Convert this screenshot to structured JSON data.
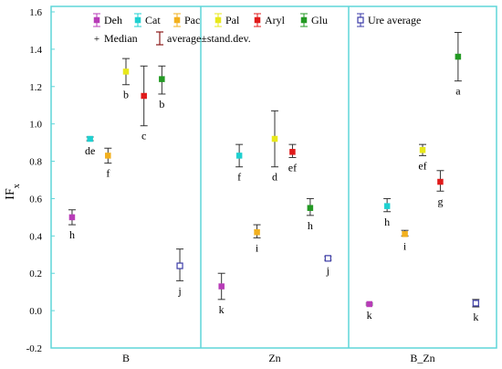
{
  "chart_data": {
    "type": "scatter",
    "title": "",
    "xlabel": "",
    "ylabel": "IF",
    "ylabel_subscript": "x",
    "ylim": [
      -0.2,
      1.6
    ],
    "yticks": [
      "-0.2",
      "0.0",
      "0.2",
      "0.4",
      "0.6",
      "0.8",
      "1.0",
      "1.2",
      "1.4",
      "1.6"
    ],
    "yticks_values": [
      -0.2,
      0,
      0.2,
      0.4,
      0.6,
      0.8,
      1.0,
      1.2,
      1.4,
      1.6
    ],
    "groups": [
      "B",
      "Zn",
      "B_Zn"
    ],
    "legend": {
      "placement": "top",
      "items": [
        {
          "name": "Deh",
          "color": "#b83cb8",
          "marker": "square-filled"
        },
        {
          "name": "Cat",
          "color": "#1fd0d0",
          "marker": "square-filled"
        },
        {
          "name": "Pac",
          "color": "#f2b01e",
          "marker": "square-filled"
        },
        {
          "name": "Pal",
          "color": "#e8e81a",
          "marker": "square-filled"
        },
        {
          "name": "Aryl",
          "color": "#e01b1b",
          "marker": "square-filled"
        },
        {
          "name": "Glu",
          "color": "#229922",
          "marker": "square-filled"
        },
        {
          "name": "Ure average",
          "color": "#3b3ba8",
          "marker": "square-open"
        }
      ],
      "extra": [
        {
          "name": "Median",
          "symbol": "plus"
        },
        {
          "name": "average±stand.dev.",
          "symbol": "errorbar",
          "color": "#8b1a1a"
        }
      ]
    },
    "series": [
      {
        "name": "Deh",
        "points": [
          {
            "group": "B",
            "y": 0.5,
            "lo": 0.46,
            "hi": 0.54,
            "label": "h"
          },
          {
            "group": "Zn",
            "y": 0.13,
            "lo": 0.06,
            "hi": 0.2,
            "label": "k"
          },
          {
            "group": "B_Zn",
            "y": 0.035,
            "lo": 0.03,
            "hi": 0.04,
            "label": "k"
          }
        ]
      },
      {
        "name": "Cat",
        "points": [
          {
            "group": "B",
            "y": 0.92,
            "lo": 0.91,
            "hi": 0.93,
            "label": "de"
          },
          {
            "group": "Zn",
            "y": 0.83,
            "lo": 0.77,
            "hi": 0.89,
            "label": "f"
          },
          {
            "group": "B_Zn",
            "y": 0.56,
            "lo": 0.53,
            "hi": 0.6,
            "label": "h"
          }
        ]
      },
      {
        "name": "Pac",
        "points": [
          {
            "group": "B",
            "y": 0.83,
            "lo": 0.79,
            "hi": 0.87,
            "label": "f"
          },
          {
            "group": "Zn",
            "y": 0.42,
            "lo": 0.39,
            "hi": 0.46,
            "label": "i"
          },
          {
            "group": "B_Zn",
            "y": 0.41,
            "lo": 0.4,
            "hi": 0.43,
            "label": "i"
          }
        ]
      },
      {
        "name": "Pal",
        "points": [
          {
            "group": "B",
            "y": 1.28,
            "lo": 1.21,
            "hi": 1.35,
            "label": "b"
          },
          {
            "group": "Zn",
            "y": 0.92,
            "lo": 0.77,
            "hi": 1.07,
            "label": "d"
          },
          {
            "group": "B_Zn",
            "y": 0.86,
            "lo": 0.83,
            "hi": 0.89,
            "label": "ef"
          }
        ]
      },
      {
        "name": "Aryl",
        "points": [
          {
            "group": "B",
            "y": 1.15,
            "lo": 0.99,
            "hi": 1.31,
            "label": "c"
          },
          {
            "group": "Zn",
            "y": 0.85,
            "lo": 0.82,
            "hi": 0.89,
            "label": "ef"
          },
          {
            "group": "B_Zn",
            "y": 0.69,
            "lo": 0.64,
            "hi": 0.75,
            "label": "g"
          }
        ]
      },
      {
        "name": "Glu",
        "points": [
          {
            "group": "B",
            "y": 1.24,
            "lo": 1.16,
            "hi": 1.31,
            "label": "b"
          },
          {
            "group": "Zn",
            "y": 0.55,
            "lo": 0.51,
            "hi": 0.6,
            "label": "h"
          },
          {
            "group": "B_Zn",
            "y": 1.36,
            "lo": 1.23,
            "hi": 1.49,
            "label": "a"
          }
        ]
      },
      {
        "name": "Ure average",
        "points": [
          {
            "group": "B",
            "y": 0.24,
            "lo": 0.16,
            "hi": 0.33,
            "label": "j"
          },
          {
            "group": "Zn",
            "y": 0.28,
            "lo": 0.27,
            "hi": 0.29,
            "label": "j"
          },
          {
            "group": "B_Zn",
            "y": 0.04,
            "lo": 0.02,
            "hi": 0.06,
            "label": "k"
          }
        ]
      }
    ],
    "grid": false,
    "colors": {
      "frame": "#5fd5d9",
      "errorbar": "#333333"
    }
  }
}
